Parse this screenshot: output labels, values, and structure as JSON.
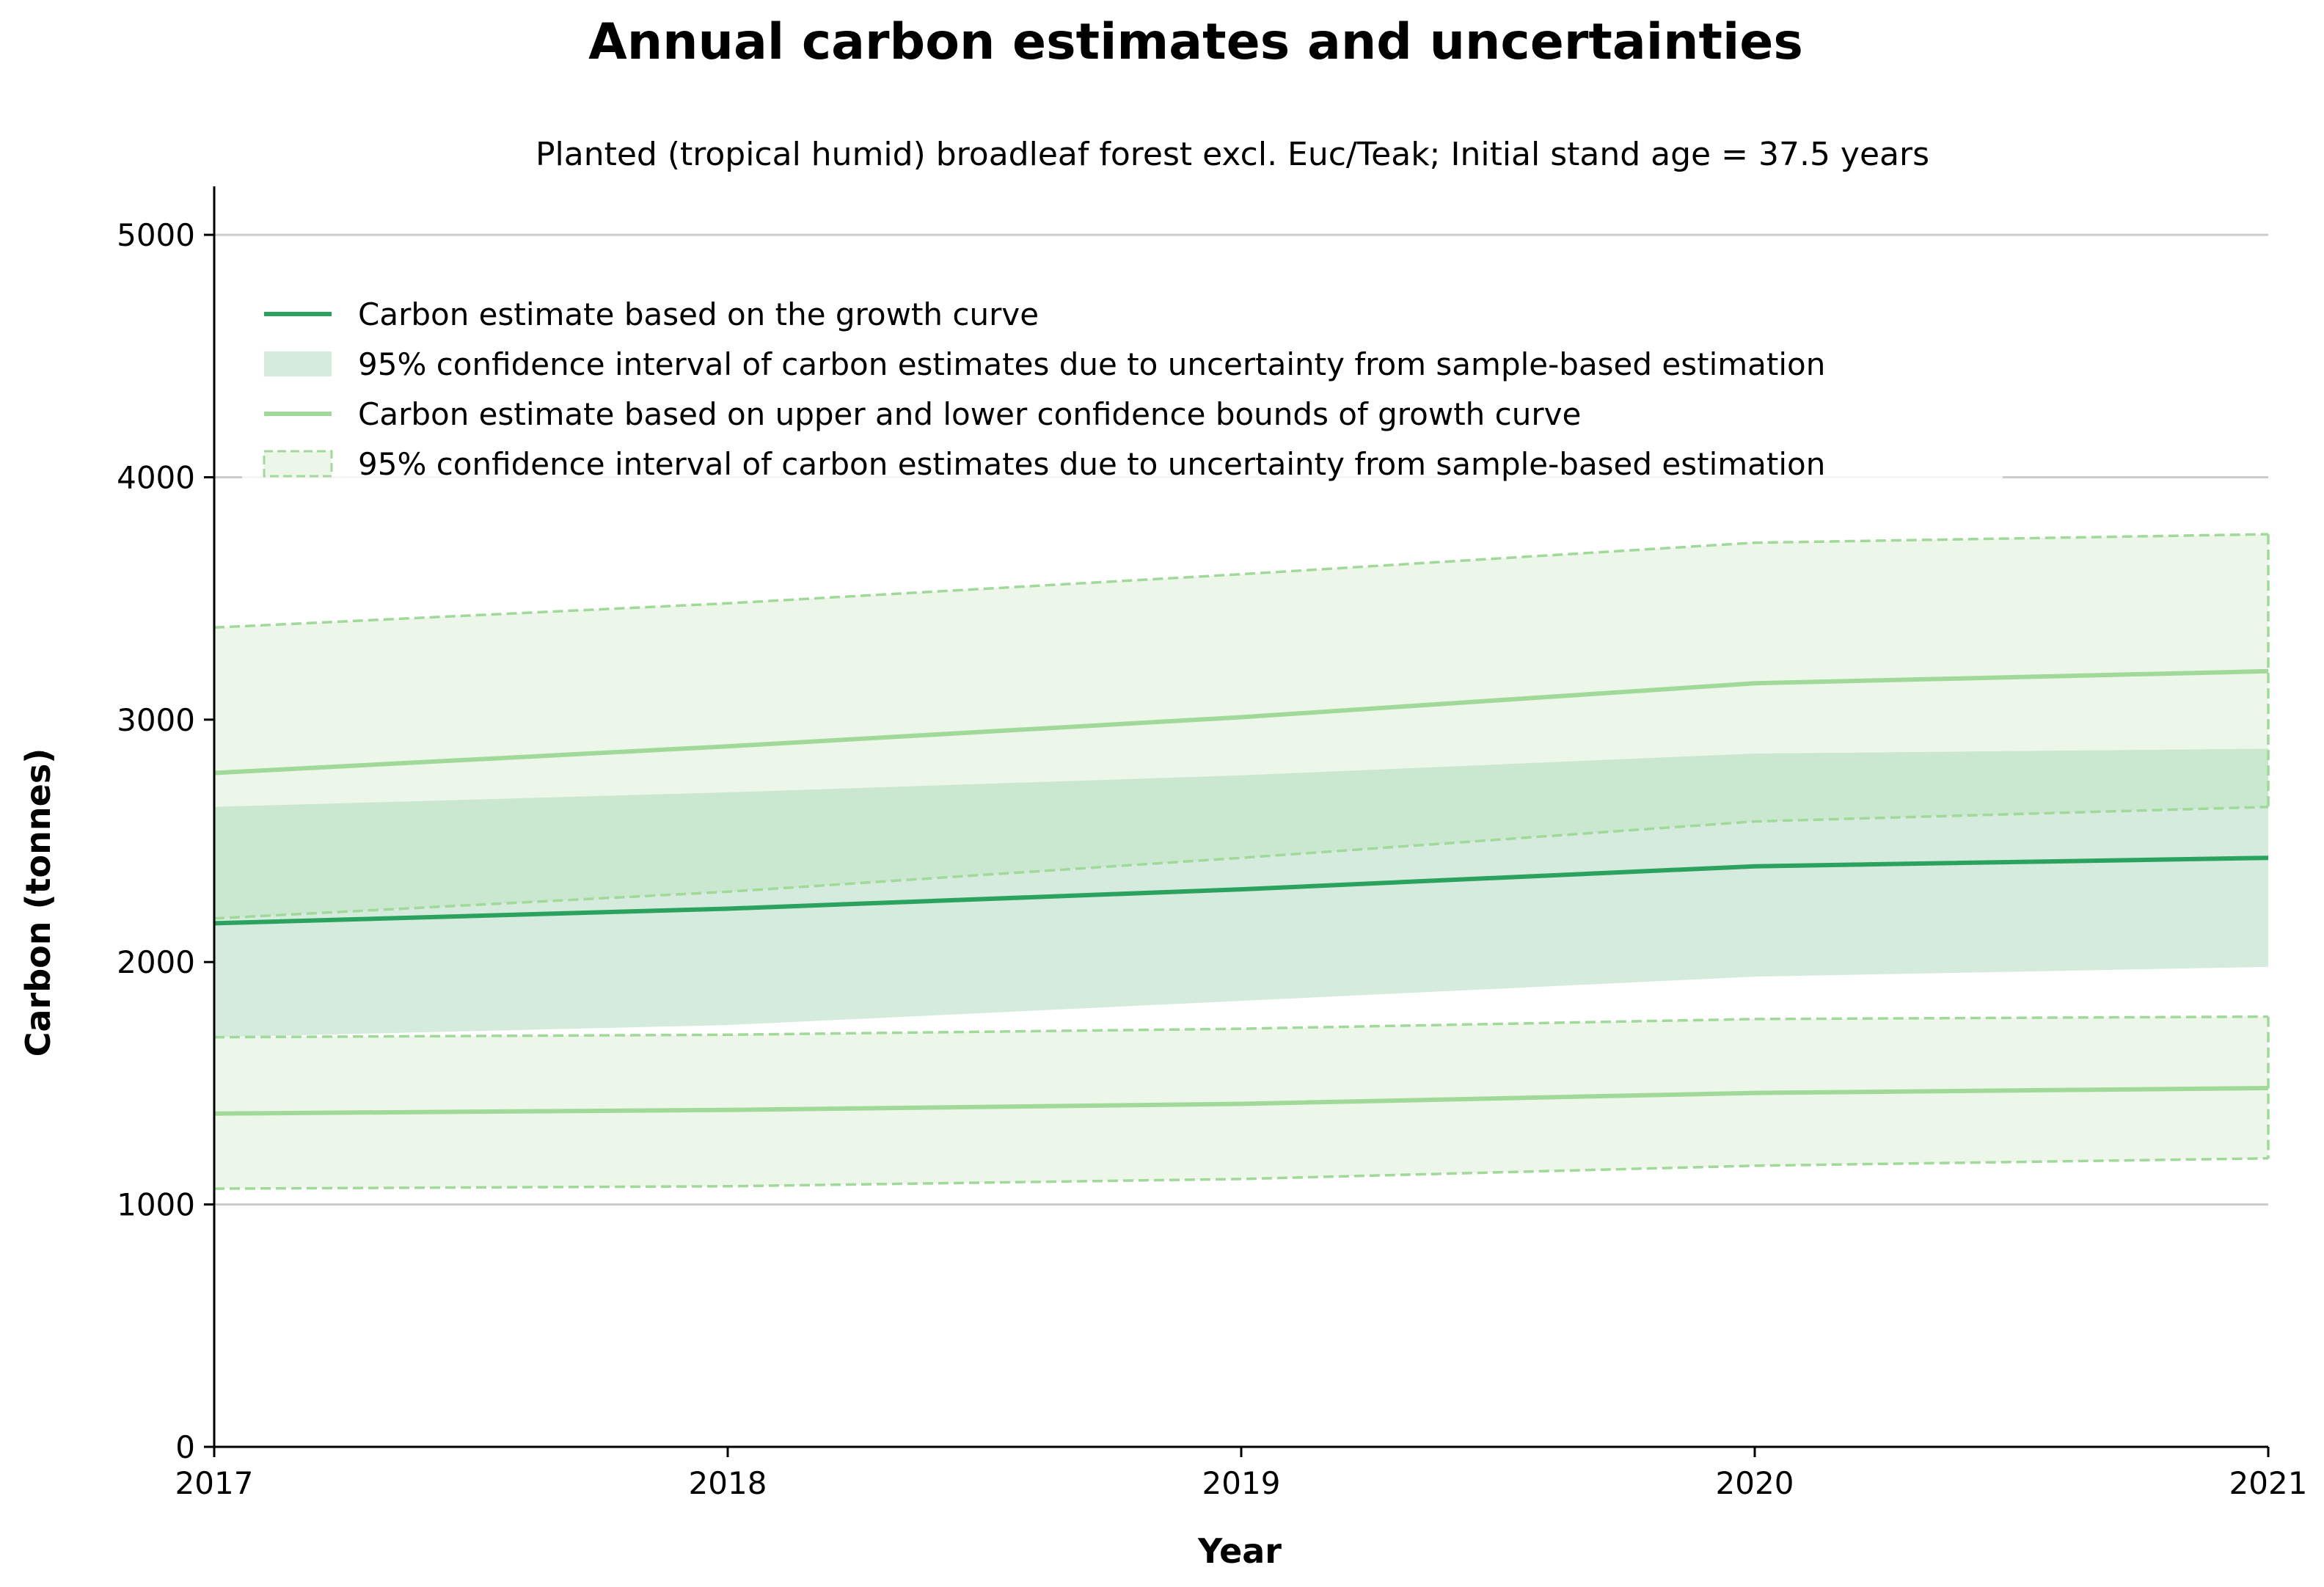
{
  "chart_data": {
    "type": "line",
    "title": "Annual carbon estimates and uncertainties",
    "subtitle": "Planted (tropical humid) broadleaf forest excl. Euc/Teak; Initial stand age = 37.5 years",
    "xlabel": "Year",
    "ylabel": "Carbon (tonnes)",
    "x": [
      2017,
      2018,
      2019,
      2020,
      2021
    ],
    "xlim": [
      2017,
      2021
    ],
    "ylim": [
      0,
      5200
    ],
    "xticks": [
      "2017",
      "2018",
      "2019",
      "2020",
      "2021"
    ],
    "yticks": [
      0,
      1000,
      2000,
      3000,
      4000,
      5000
    ],
    "grid": "horizontal",
    "legend_position": "upper-left",
    "colors": {
      "central": "#2ca25f",
      "central_band": "#d4ebdd",
      "bounds": "#a1d99b",
      "bounds_band": "#edf7e9",
      "overlap_band": "#cae8cf",
      "grid": "#cccccc"
    },
    "central_estimate": {
      "values": [
        2160,
        2220,
        2300,
        2395,
        2430
      ],
      "ci_lower": [
        1690,
        1740,
        1840,
        1940,
        1980
      ],
      "ci_upper": [
        2640,
        2700,
        2770,
        2860,
        2880
      ]
    },
    "upper_bound_curve": {
      "values": [
        2780,
        2890,
        3010,
        3150,
        3200
      ],
      "ci_lower": [
        2180,
        2290,
        2430,
        2580,
        2640
      ],
      "ci_upper": [
        3380,
        3480,
        3600,
        3730,
        3765
      ]
    },
    "lower_bound_curve": {
      "values": [
        1375,
        1390,
        1415,
        1460,
        1480
      ],
      "ci_lower": [
        1065,
        1075,
        1105,
        1160,
        1190
      ],
      "ci_upper": [
        1690,
        1700,
        1725,
        1765,
        1775
      ]
    },
    "legend": [
      {
        "label": "Carbon estimate based on the growth curve",
        "kind": "line",
        "color": "#2ca25f"
      },
      {
        "label": "95% confidence interval of carbon estimates due to uncertainty from sample-based estimation",
        "kind": "band",
        "color": "#d4ebdd"
      },
      {
        "label": "Carbon estimate based on upper and lower confidence bounds of growth curve",
        "kind": "line",
        "color": "#a1d99b"
      },
      {
        "label": "95% confidence interval of carbon estimates due to uncertainty from sample-based estimation",
        "kind": "dashed-band",
        "color": "#a1d99b"
      }
    ]
  }
}
